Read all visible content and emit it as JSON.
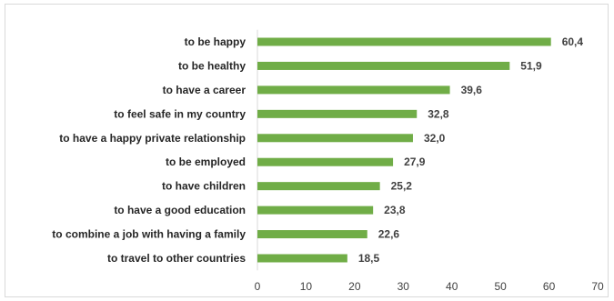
{
  "chart_data": {
    "type": "bar",
    "orientation": "horizontal",
    "categories": [
      "to be happy",
      "to be healthy",
      "to have a career",
      "to feel safe in my country",
      "to have a happy private relationship",
      "to be employed",
      "to have children",
      "to have a good education",
      "to combine a job with having a family",
      "to travel to other countries"
    ],
    "values": [
      60.4,
      51.9,
      39.6,
      32.8,
      32.0,
      27.9,
      25.2,
      23.8,
      22.6,
      18.5
    ],
    "value_labels": [
      "60,4",
      "51,9",
      "39,6",
      "32,8",
      "32,0",
      "27,9",
      "25,2",
      "23,8",
      "22,6",
      "18,5"
    ],
    "xlim": [
      0,
      70
    ],
    "x_ticks": [
      0,
      10,
      20,
      30,
      40,
      50,
      60,
      70
    ],
    "grid": false,
    "legend": "none",
    "bar_color": "#70ad47",
    "title": "",
    "xlabel": "",
    "ylabel": ""
  }
}
